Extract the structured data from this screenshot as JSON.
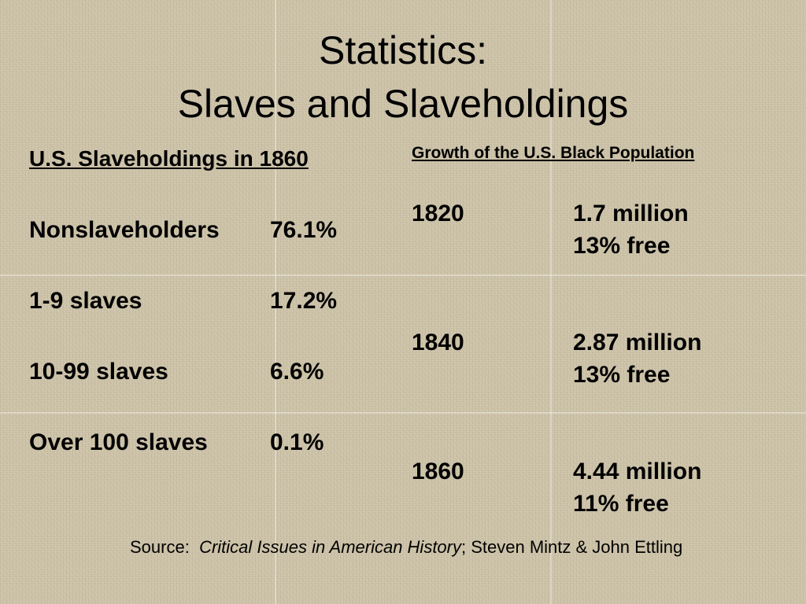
{
  "title": {
    "line1": "Statistics:",
    "line2": "Slaves and Slaveholdings"
  },
  "left": {
    "heading": "U.S. Slaveholdings in 1860",
    "rows": [
      [
        "Nonslaveholders",
        "76.1%"
      ],
      [
        "1-9 slaves",
        "17.2%"
      ],
      [
        "10-99 slaves",
        "6.6%"
      ],
      [
        "Over 100 slaves",
        "0.1%"
      ]
    ]
  },
  "right": {
    "heading": "Growth of the U.S. Black Population",
    "rows": [
      [
        "1820",
        "1.7 million",
        "13% free"
      ],
      [
        "1840",
        "2.87 million",
        "13% free"
      ],
      [
        "1860",
        "4.44 million",
        "11% free"
      ]
    ]
  },
  "source": {
    "label": "Source:",
    "title": "Critical Issues in American History",
    "rest": "; Steven Mintz & John Ettling"
  }
}
